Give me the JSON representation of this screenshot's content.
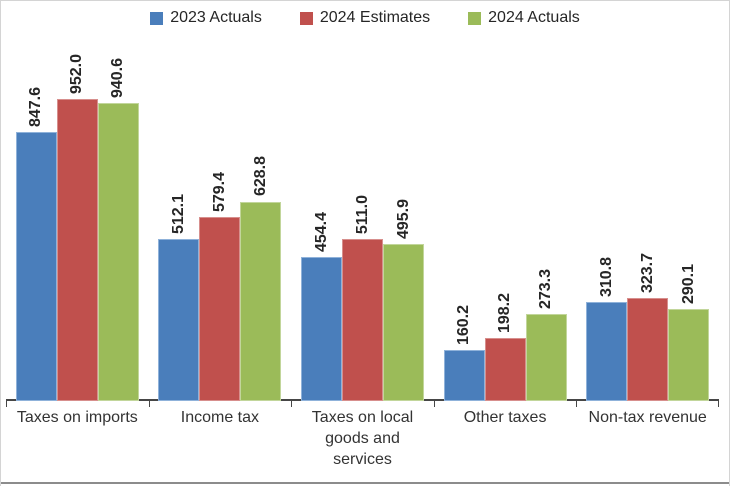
{
  "chart_data": {
    "type": "bar",
    "title": "",
    "xlabel": "",
    "ylabel": "",
    "categories": [
      "Taxes on imports",
      "Income tax",
      "Taxes on local goods and services",
      "Other taxes",
      "Non-tax revenue"
    ],
    "series": [
      {
        "name": "2023 Actuals",
        "color": "#4a7ebb",
        "border_color": "#8fb2da",
        "values": [
          847.6,
          512.1,
          454.4,
          160.2,
          310.8
        ]
      },
      {
        "name": "2024 Estimates",
        "color": "#c0504d",
        "border_color": "#d78f8d",
        "values": [
          952.0,
          579.4,
          511.0,
          198.2,
          323.7
        ]
      },
      {
        "name": "2024 Actuals",
        "color": "#9bbb59",
        "border_color": "#c2d69b",
        "values": [
          940.6,
          628.8,
          495.9,
          273.3,
          290.1
        ]
      }
    ],
    "ylim": [
      0,
      1000
    ],
    "grid": false,
    "legend_position": "top",
    "value_label_style": "rotated-90-degrees, one decimal place, above each bar",
    "axis_color": "#464646",
    "text_color": "#333333"
  }
}
